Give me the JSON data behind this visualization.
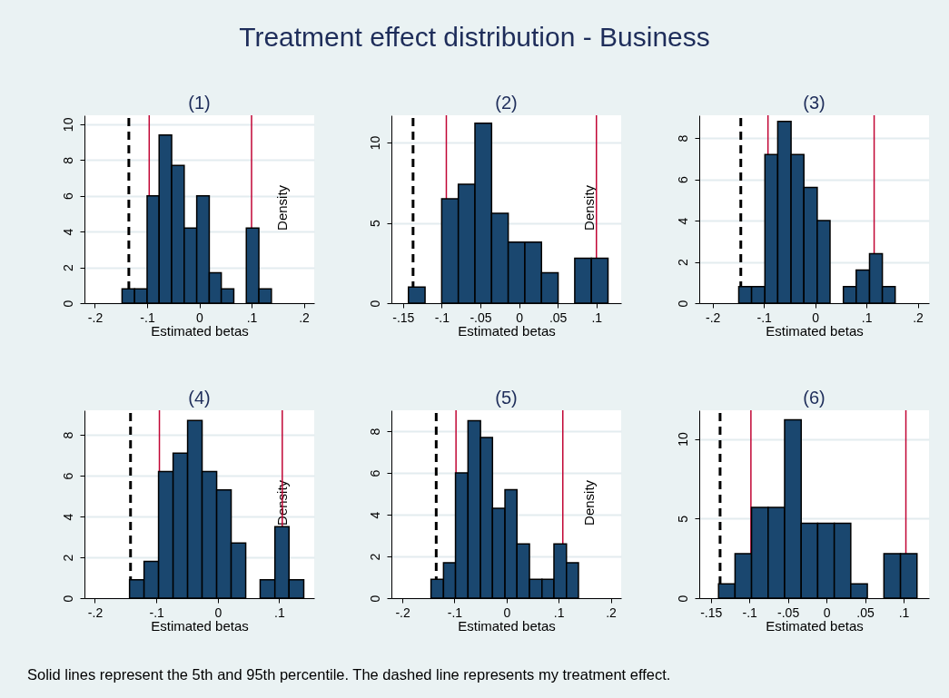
{
  "chart_data": [
    {
      "type": "other",
      "title": "Treatment effect distribution - Business"
    },
    {
      "type": "histogram",
      "title": "(1)",
      "xlabel": "Estimated betas",
      "ylabel": "Density",
      "color": "#1a476f",
      "grid": "y",
      "bins": [
        -0.148,
        -0.124,
        -0.1,
        -0.077,
        -0.053,
        -0.029,
        -0.005,
        0.019,
        0.042,
        0.066,
        0.09,
        0.114,
        0.138
      ],
      "values": [
        0.8,
        0.8,
        6,
        9.4,
        7.7,
        4.2,
        6,
        1.7,
        0.8,
        0,
        4.2,
        0.8
      ],
      "xlim": [
        -0.22,
        0.22
      ],
      "ylim": [
        0,
        10.5
      ],
      "xticks": [
        {
          "value": -0.2,
          "label": "-.2"
        },
        {
          "value": -0.1,
          "label": "-.1"
        },
        {
          "value": 0,
          "label": "0"
        },
        {
          "value": 0.1,
          "label": ".1"
        },
        {
          "value": 0.2,
          "label": ".2"
        }
      ],
      "yticks": [
        0,
        2,
        4,
        6,
        8,
        10
      ],
      "ref_lines": [
        {
          "axis": "x",
          "value": -0.135,
          "color": "#000000",
          "line_style": "dashed"
        },
        {
          "axis": "x",
          "value": -0.096,
          "color": "#c10534",
          "line_style": "solid"
        },
        {
          "axis": "x",
          "value": 0.1,
          "color": "#c10534",
          "line_style": "solid"
        }
      ]
    },
    {
      "type": "histogram",
      "title": "(2)",
      "xlabel": "Estimated betas",
      "ylabel": "Density",
      "color": "#1a476f",
      "grid": "y",
      "bins": [
        -0.143,
        -0.1215,
        -0.1,
        -0.0785,
        -0.057,
        -0.0355,
        -0.014,
        0.0075,
        0.029,
        0.0505,
        0.072,
        0.0935,
        0.115
      ],
      "values": [
        1,
        0,
        6.5,
        7.4,
        11.2,
        5.6,
        3.8,
        3.8,
        1.9,
        0,
        2.8,
        2.8
      ],
      "xlim": [
        -0.165,
        0.132
      ],
      "ylim": [
        0,
        11.7
      ],
      "xticks": [
        {
          "value": -0.15,
          "label": "-.15"
        },
        {
          "value": -0.1,
          "label": "-.1"
        },
        {
          "value": -0.05,
          "label": "-.05"
        },
        {
          "value": 0,
          "label": "0"
        },
        {
          "value": 0.05,
          "label": ".05"
        },
        {
          "value": 0.1,
          "label": ".1"
        }
      ],
      "yticks": [
        0,
        5,
        10
      ],
      "ref_lines": [
        {
          "axis": "x",
          "value": -0.137,
          "color": "#000000",
          "line_style": "dashed"
        },
        {
          "axis": "x",
          "value": -0.094,
          "color": "#c10534",
          "line_style": "solid"
        },
        {
          "axis": "x",
          "value": 0.1,
          "color": "#c10534",
          "line_style": "solid"
        }
      ]
    },
    {
      "type": "histogram",
      "title": "(3)",
      "xlabel": "Estimated betas",
      "color": "#1a476f",
      "grid": "y",
      "bins": [
        -0.149,
        -0.124,
        -0.098,
        -0.073,
        -0.047,
        -0.022,
        0.004,
        0.029,
        0.055,
        0.08,
        0.106,
        0.131,
        0.156
      ],
      "values": [
        0.8,
        0.8,
        7.2,
        8.8,
        7.2,
        5.6,
        4,
        0,
        0.8,
        1.6,
        2.4,
        0.8
      ],
      "xlim": [
        -0.226,
        0.222
      ],
      "ylim": [
        0,
        9.1
      ],
      "xticks": [
        {
          "value": -0.2,
          "label": "-.2"
        },
        {
          "value": -0.1,
          "label": "-.1"
        },
        {
          "value": 0,
          "label": "0"
        },
        {
          "value": 0.1,
          "label": ".1"
        },
        {
          "value": 0.2,
          "label": ".2"
        }
      ],
      "yticks": [
        0,
        2,
        4,
        6,
        8
      ],
      "ref_lines": [
        {
          "axis": "x",
          "value": -0.145,
          "color": "#000000",
          "line_style": "dashed"
        },
        {
          "axis": "x",
          "value": -0.092,
          "color": "#c10534",
          "line_style": "solid"
        },
        {
          "axis": "x",
          "value": 0.115,
          "color": "#c10534",
          "line_style": "solid"
        }
      ]
    },
    {
      "type": "histogram",
      "title": "(4)",
      "xlabel": "Estimated betas",
      "ylabel": "Density",
      "color": "#1a476f",
      "grid": "y",
      "bins": [
        -0.1436,
        -0.12,
        -0.0964,
        -0.0727,
        -0.0491,
        -0.0255,
        -0.0018,
        0.0218,
        0.0455,
        0.069,
        0.093,
        0.116,
        0.14
      ],
      "values": [
        0.9,
        1.8,
        6.2,
        7.1,
        8.7,
        6.2,
        5.3,
        2.7,
        0,
        0.9,
        3.5,
        0.9
      ],
      "xlim": [
        -0.217,
        0.157
      ],
      "ylim": [
        0,
        9.2
      ],
      "xticks": [
        {
          "value": -0.2,
          "label": "-.2"
        },
        {
          "value": -0.1,
          "label": "-.1"
        },
        {
          "value": 0,
          "label": "0"
        },
        {
          "value": 0.1,
          "label": ".1"
        }
      ],
      "yticks": [
        0,
        2,
        4,
        6,
        8
      ],
      "ref_lines": [
        {
          "axis": "x",
          "value": -0.142,
          "color": "#000000",
          "line_style": "dashed"
        },
        {
          "axis": "x",
          "value": -0.095,
          "color": "#c10534",
          "line_style": "solid"
        },
        {
          "axis": "x",
          "value": 0.105,
          "color": "#c10534",
          "line_style": "solid"
        }
      ]
    },
    {
      "type": "histogram",
      "title": "(5)",
      "xlabel": "Estimated betas",
      "ylabel": "Density",
      "color": "#1a476f",
      "grid": "y",
      "bins": [
        -0.145,
        -0.121,
        -0.098,
        -0.074,
        -0.05,
        -0.027,
        -0.003,
        0.02,
        0.044,
        0.068,
        0.091,
        0.115,
        0.138
      ],
      "values": [
        0.9,
        1.7,
        6,
        8.5,
        7.7,
        4.3,
        5.2,
        2.6,
        0.9,
        0.9,
        2.6,
        1.7
      ],
      "xlim": [
        -0.221,
        0.22
      ],
      "ylim": [
        0,
        9
      ],
      "xticks": [
        {
          "value": -0.2,
          "label": "-.2"
        },
        {
          "value": -0.1,
          "label": "-.1"
        },
        {
          "value": 0,
          "label": "0"
        },
        {
          "value": 0.1,
          "label": ".1"
        },
        {
          "value": 0.2,
          "label": ".2"
        }
      ],
      "yticks": [
        0,
        2,
        4,
        6,
        8
      ],
      "ref_lines": [
        {
          "axis": "x",
          "value": -0.135,
          "color": "#000000",
          "line_style": "dashed"
        },
        {
          "axis": "x",
          "value": -0.097,
          "color": "#c10534",
          "line_style": "solid"
        },
        {
          "axis": "x",
          "value": 0.108,
          "color": "#c10534",
          "line_style": "solid"
        }
      ]
    },
    {
      "type": "histogram",
      "title": "(6)",
      "xlabel": "Estimated betas",
      "color": "#1a476f",
      "grid": "y",
      "bins": [
        -0.14,
        -0.1186,
        -0.0972,
        -0.0757,
        -0.0543,
        -0.0328,
        -0.0114,
        0.0101,
        0.0315,
        0.053,
        0.0745,
        0.096,
        0.1174
      ],
      "values": [
        0.9,
        2.8,
        5.7,
        5.7,
        11.2,
        4.7,
        4.7,
        4.7,
        0.9,
        0,
        2.8,
        2.8
      ],
      "xlim": [
        -0.165,
        0.133
      ],
      "ylim": [
        0,
        11.8
      ],
      "xticks": [
        {
          "value": -0.15,
          "label": "-.15"
        },
        {
          "value": -0.1,
          "label": "-.1"
        },
        {
          "value": -0.05,
          "label": "-.05"
        },
        {
          "value": 0,
          "label": "0"
        },
        {
          "value": 0.05,
          "label": ".05"
        },
        {
          "value": 0.1,
          "label": ".1"
        }
      ],
      "yticks": [
        0,
        5,
        10
      ],
      "ref_lines": [
        {
          "axis": "x",
          "value": -0.138,
          "color": "#000000",
          "line_style": "dashed"
        },
        {
          "axis": "x",
          "value": -0.098,
          "color": "#c10534",
          "line_style": "solid"
        },
        {
          "axis": "x",
          "value": 0.103,
          "color": "#c10534",
          "line_style": "solid"
        }
      ]
    },
    {
      "type": "other",
      "annotations": [
        "Solid lines represent the 5th and 95th percentile. The dashed line represents my treatment effect."
      ]
    }
  ]
}
